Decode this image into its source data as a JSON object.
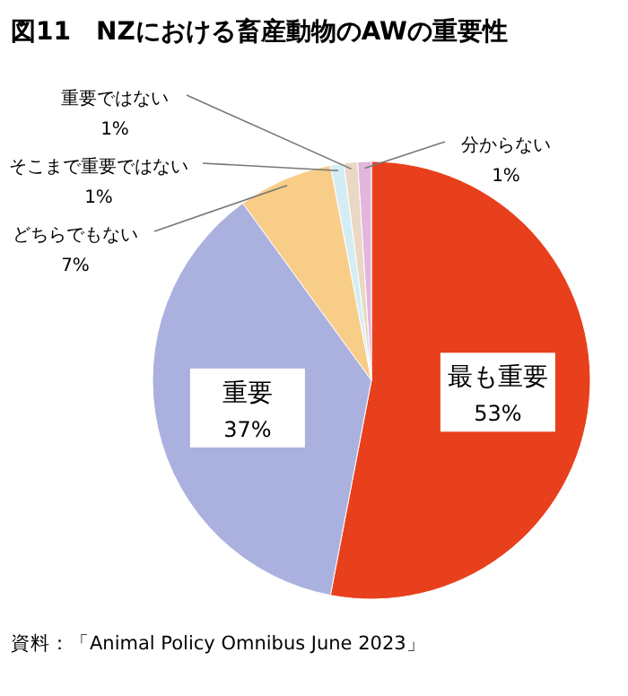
{
  "chart_data": {
    "type": "pie",
    "title": "図11　NZにおける畜産動物のAWの重要性",
    "categories": [
      "最も重要",
      "重要",
      "どちらでもない",
      "そこまで重要ではない",
      "重要ではない",
      "分からない"
    ],
    "values": [
      53,
      37,
      7,
      1,
      1,
      1
    ],
    "colors": [
      "#e8401c",
      "#aab1de",
      "#f8cd88",
      "#d4edf5",
      "#ead8c4",
      "#e3b6de"
    ],
    "value_labels": [
      "53%",
      "37%",
      "7%",
      "1%",
      "1%",
      "1%"
    ],
    "annotations": [
      "資料：「Animal Policy Omnibus June 2023」"
    ]
  }
}
